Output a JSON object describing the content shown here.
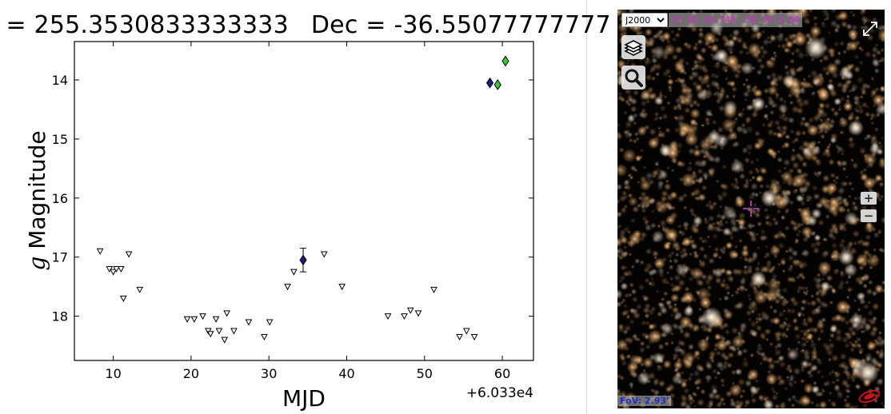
{
  "plot": {
    "title_ra": ". = 255.3530833333333",
    "title_dec": "Dec = -36.55077777777"
  },
  "chart_data": {
    "type": "scatter",
    "title": ". = 255.3530833333333   Dec = -36.55077777777",
    "xlabel": "MJD",
    "ylabel": "g Magnitude",
    "x_offset_label": "+6.033e4",
    "xlim": [
      5,
      64
    ],
    "ylim": [
      18.75,
      13.35
    ],
    "y_inverted": true,
    "x_ticks": [
      10,
      20,
      30,
      40,
      50,
      60
    ],
    "x_tick_labels": [
      "10",
      "20",
      "30",
      "40",
      "50",
      "60"
    ],
    "y_ticks": [
      14,
      15,
      16,
      17,
      18
    ],
    "y_tick_labels": [
      "14",
      "15",
      "16",
      "17",
      "18"
    ],
    "grid": false,
    "series": [
      {
        "marker": "triangle-down",
        "color": "#ffffff",
        "points": [
          [
            8.3,
            16.9
          ],
          [
            9.5,
            17.2
          ],
          [
            10.0,
            17.25
          ],
          [
            10.4,
            17.2
          ],
          [
            11.0,
            17.2
          ],
          [
            11.3,
            17.7
          ],
          [
            12.0,
            16.95
          ],
          [
            13.4,
            17.55
          ],
          [
            19.5,
            18.05
          ],
          [
            20.4,
            18.05
          ],
          [
            21.5,
            18.0
          ],
          [
            22.2,
            18.25
          ],
          [
            22.5,
            18.3
          ],
          [
            23.2,
            18.05
          ],
          [
            23.6,
            18.25
          ],
          [
            24.3,
            18.4
          ],
          [
            24.6,
            17.95
          ],
          [
            25.5,
            18.25
          ],
          [
            27.4,
            18.1
          ],
          [
            29.4,
            18.35
          ],
          [
            30.1,
            18.1
          ],
          [
            32.4,
            17.5
          ],
          [
            33.2,
            17.25
          ],
          [
            37.1,
            16.95
          ],
          [
            39.4,
            17.5
          ],
          [
            45.3,
            18.0
          ],
          [
            47.4,
            18.0
          ],
          [
            48.2,
            17.9
          ],
          [
            49.2,
            17.95
          ],
          [
            51.2,
            17.55
          ],
          [
            54.5,
            18.35
          ],
          [
            55.4,
            18.25
          ],
          [
            56.4,
            18.35
          ]
        ]
      },
      {
        "marker": "diamond",
        "color": "#1a1a80",
        "points": [
          [
            34.4,
            17.05
          ],
          [
            58.4,
            14.05
          ]
        ],
        "errors": [
          0.2,
          0.03
        ]
      },
      {
        "marker": "diamond",
        "color": "#33cc33",
        "points": [
          [
            59.4,
            14.08
          ],
          [
            60.4,
            13.68
          ]
        ]
      }
    ]
  },
  "sky": {
    "frame_options": [
      "J2000"
    ],
    "frame_selected": "J2000",
    "coordinates": "17 01 24.740 -36 33 2.80",
    "fov_label": "FoV: 2.93'",
    "icons": {
      "layers": "layers-icon",
      "search": "magnifier-icon",
      "fullscreen": "expand-icon",
      "logo": "aladin-logo-icon",
      "reticle": "crosshair-icon"
    },
    "zoom_in_label": "+",
    "zoom_out_label": "−",
    "reticle_color": "#cc44cc"
  }
}
